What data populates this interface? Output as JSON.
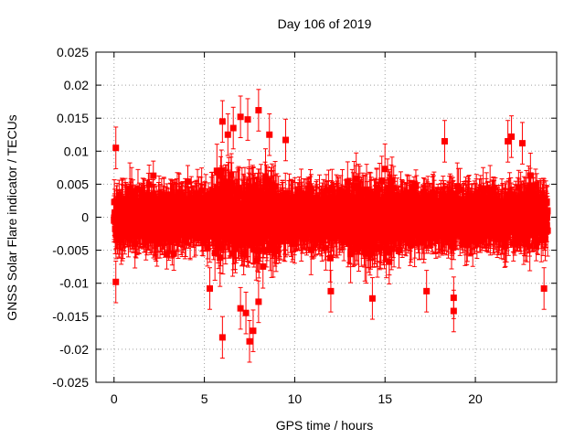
{
  "chart_data": {
    "type": "scatter",
    "title": "Day 106 of 2019",
    "xlabel": "GPS time / hours",
    "ylabel": "GNSS Solar Flare indicator / TECUs",
    "xlim": [
      -1,
      24.5
    ],
    "ylim": [
      -0.025,
      0.025
    ],
    "x_ticks": [
      0,
      5,
      10,
      15,
      20
    ],
    "x_tick_labels": [
      "0",
      "5",
      "10",
      "15",
      "20"
    ],
    "y_ticks": [
      -0.025,
      -0.02,
      -0.015,
      -0.01,
      -0.005,
      0,
      0.005,
      0.01,
      0.015,
      0.02,
      0.025
    ],
    "y_tick_labels": [
      "-0.025",
      "-0.02",
      "-0.015",
      "-0.01",
      "-0.005",
      "0",
      "0.005",
      "0.01",
      "0.015",
      "0.02",
      "0.025"
    ],
    "grid": true,
    "series": [
      {
        "name": "GNSS Solar Flare indicator",
        "color": "#ff0000",
        "marker": "square",
        "error_bars": true,
        "x_range": [
          0,
          24
        ],
        "n_points": 2880,
        "typical_value_range": [
          -0.006,
          0.006
        ],
        "typical_error": 0.003,
        "outliers": [
          {
            "x": 0.1,
            "y": 0.0105
          },
          {
            "x": 0.1,
            "y": -0.0098
          },
          {
            "x": 6.0,
            "y": 0.0145
          },
          {
            "x": 6.3,
            "y": 0.0125
          },
          {
            "x": 6.6,
            "y": 0.0135
          },
          {
            "x": 7.0,
            "y": 0.0152
          },
          {
            "x": 7.4,
            "y": 0.0148
          },
          {
            "x": 8.0,
            "y": 0.0162
          },
          {
            "x": 8.6,
            "y": 0.0125
          },
          {
            "x": 9.5,
            "y": 0.0117
          },
          {
            "x": 6.0,
            "y": -0.0182
          },
          {
            "x": 7.5,
            "y": -0.0188
          },
          {
            "x": 7.7,
            "y": -0.0172
          },
          {
            "x": 7.3,
            "y": -0.0145
          },
          {
            "x": 7.0,
            "y": -0.0138
          },
          {
            "x": 8.0,
            "y": -0.0128
          },
          {
            "x": 5.3,
            "y": -0.0108
          },
          {
            "x": 12.0,
            "y": -0.0112
          },
          {
            "x": 14.3,
            "y": -0.0123
          },
          {
            "x": 17.3,
            "y": -0.0112
          },
          {
            "x": 18.8,
            "y": -0.0142
          },
          {
            "x": 18.8,
            "y": -0.0122
          },
          {
            "x": 18.3,
            "y": 0.0115
          },
          {
            "x": 21.8,
            "y": 0.0115
          },
          {
            "x": 22.0,
            "y": 0.0122
          },
          {
            "x": 22.6,
            "y": 0.0112
          },
          {
            "x": 23.8,
            "y": -0.0108
          }
        ]
      }
    ]
  }
}
